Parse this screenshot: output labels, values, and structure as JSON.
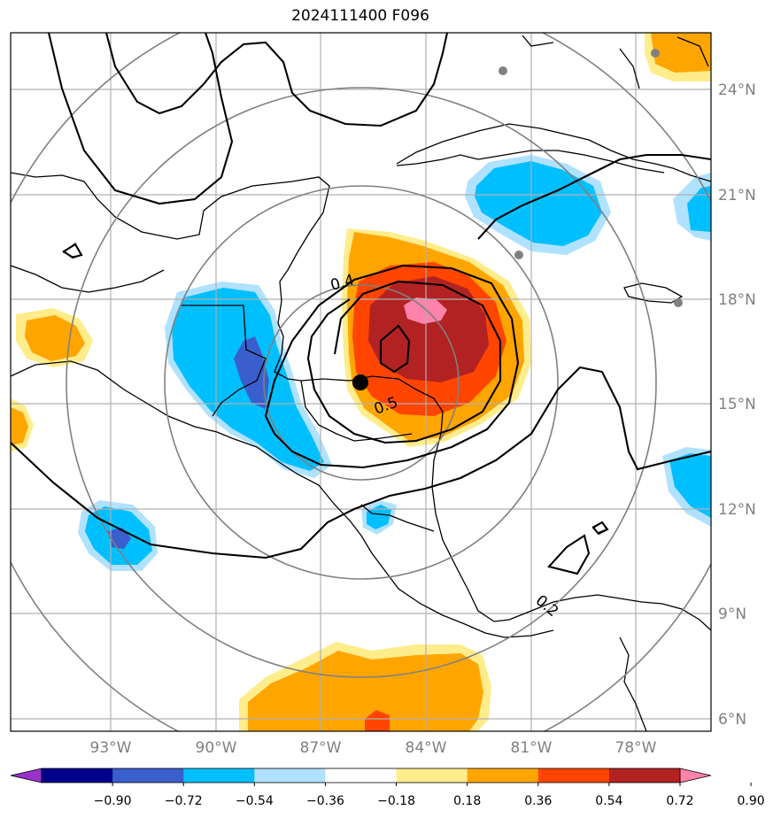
{
  "title": "2024111400 F096",
  "lat_labels": [
    "24°N",
    "21°N",
    "18°N",
    "15°N",
    "12°N",
    "9°N",
    "6°N"
  ],
  "lon_labels": [
    "93°W",
    "90°W",
    "87°W",
    "84°W",
    "81°W",
    "78°W"
  ],
  "contour_labels": [
    "0.4",
    "0.5",
    "0.2"
  ],
  "colorbar": {
    "colors": [
      "#9932cc",
      "#00008b",
      "#3a5fcd",
      "#00bfff",
      "#b0e2ff",
      "#ffffff",
      "#ffec8b",
      "#ffa500",
      "#ff4500",
      "#b22222",
      "#ff82ab"
    ],
    "tick_labels": [
      "−0.90",
      "−0.72",
      "−0.54",
      "−0.36",
      "−0.18",
      "0.18",
      "0.36",
      "0.54",
      "0.72",
      "0.90"
    ]
  },
  "storm_marker": "black-dot",
  "colors": {
    "grid": "#b0b0b0",
    "range_rings": "#808080",
    "axis_labels": "#808080"
  }
}
